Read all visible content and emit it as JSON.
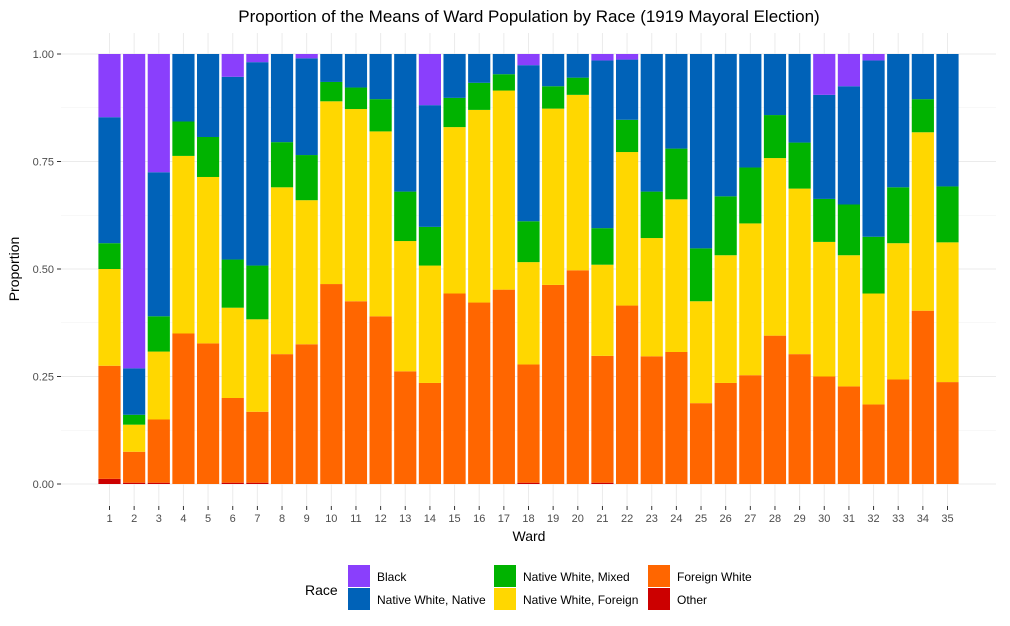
{
  "chart_data": {
    "type": "bar",
    "stacked": true,
    "title": "Proportion of the Means of Ward Population by Race (1919 Mayoral Election)",
    "xlabel": "Ward",
    "ylabel": "Proportion",
    "ylim": [
      0,
      1
    ],
    "yticks": [
      "0.00",
      "0.25",
      "0.50",
      "0.75",
      "1.00"
    ],
    "grid": true,
    "categories": [
      "1",
      "2",
      "3",
      "4",
      "5",
      "6",
      "7",
      "8",
      "9",
      "10",
      "11",
      "12",
      "13",
      "14",
      "15",
      "16",
      "17",
      "18",
      "19",
      "20",
      "21",
      "22",
      "23",
      "24",
      "25",
      "26",
      "27",
      "28",
      "29",
      "30",
      "31",
      "32",
      "33",
      "34",
      "35"
    ],
    "series": [
      {
        "name": "Other",
        "color": "#cc0000",
        "values": [
          0.012,
          0.003,
          0.003,
          0,
          0,
          0.003,
          0.003,
          0,
          0,
          0,
          0,
          0,
          0,
          0,
          0,
          0,
          0,
          0.003,
          0,
          0,
          0.003,
          0,
          0,
          0,
          0,
          0,
          0,
          0,
          0,
          0,
          0,
          0,
          0,
          0,
          0
        ]
      },
      {
        "name": "Foreign White",
        "color": "#ff6600",
        "values": [
          0.263,
          0.072,
          0.147,
          0.35,
          0.327,
          0.197,
          0.165,
          0.302,
          0.325,
          0.465,
          0.425,
          0.39,
          0.262,
          0.235,
          0.443,
          0.422,
          0.452,
          0.275,
          0.463,
          0.497,
          0.295,
          0.415,
          0.297,
          0.307,
          0.188,
          0.235,
          0.253,
          0.345,
          0.302,
          0.25,
          0.227,
          0.185,
          0.243,
          0.403,
          0.237
        ]
      },
      {
        "name": "Native White, Foreign",
        "color": "#ffd700",
        "values": [
          0.225,
          0.063,
          0.158,
          0.413,
          0.387,
          0.21,
          0.215,
          0.388,
          0.335,
          0.425,
          0.447,
          0.43,
          0.303,
          0.273,
          0.387,
          0.448,
          0.463,
          0.238,
          0.41,
          0.408,
          0.212,
          0.357,
          0.275,
          0.355,
          0.237,
          0.297,
          0.353,
          0.413,
          0.385,
          0.313,
          0.305,
          0.258,
          0.317,
          0.415,
          0.325
        ]
      },
      {
        "name": "Native White, Mixed",
        "color": "#00b300",
        "values": [
          0.06,
          0.023,
          0.082,
          0.08,
          0.093,
          0.112,
          0.125,
          0.105,
          0.105,
          0.045,
          0.05,
          0.075,
          0.115,
          0.09,
          0.068,
          0.063,
          0.038,
          0.095,
          0.052,
          0.04,
          0.085,
          0.075,
          0.108,
          0.118,
          0.123,
          0.137,
          0.13,
          0.1,
          0.107,
          0.1,
          0.118,
          0.132,
          0.13,
          0.077,
          0.13
        ]
      },
      {
        "name": "Native White, Native",
        "color": "#0062b8",
        "values": [
          0.293,
          0.108,
          0.335,
          0.157,
          0.193,
          0.425,
          0.473,
          0.205,
          0.225,
          0.065,
          0.078,
          0.105,
          0.32,
          0.283,
          0.102,
          0.067,
          0.047,
          0.363,
          0.075,
          0.055,
          0.39,
          0.14,
          0.32,
          0.22,
          0.452,
          0.331,
          0.264,
          0.142,
          0.206,
          0.242,
          0.275,
          0.41,
          0.31,
          0.105,
          0.308
        ]
      },
      {
        "name": "Black",
        "color": "#8a3ffc",
        "values": [
          0.147,
          0.731,
          0.275,
          0,
          0,
          0.053,
          0.019,
          0,
          0.01,
          0,
          0,
          0,
          0,
          0.119,
          0,
          0,
          0,
          0.026,
          0,
          0,
          0.015,
          0.013,
          0,
          0,
          0,
          0,
          0,
          0,
          0,
          0.095,
          0.075,
          0.015,
          0,
          0,
          0
        ]
      }
    ],
    "legend": {
      "title": "Race",
      "position": "bottom",
      "order": [
        "Black",
        "Native White, Native",
        "Native White, Mixed",
        "Native White, Foreign",
        "Foreign White",
        "Other"
      ]
    }
  }
}
